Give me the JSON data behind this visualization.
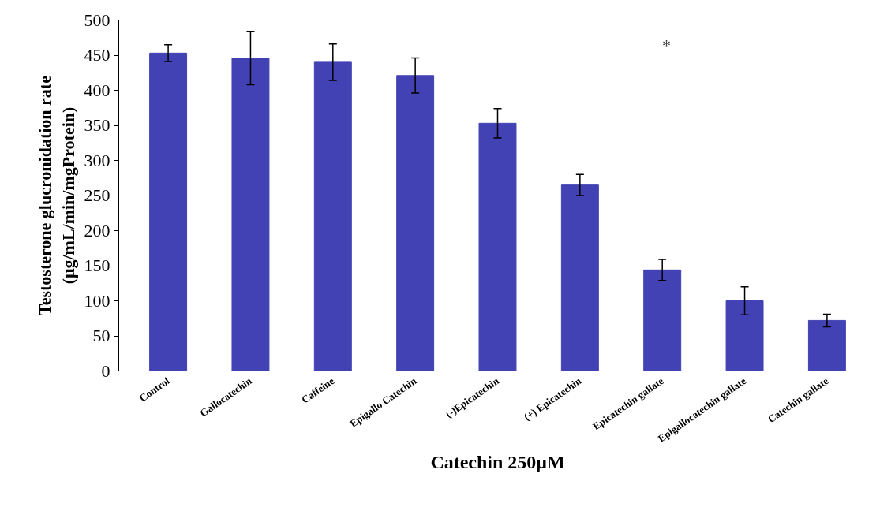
{
  "chart_data": {
    "type": "bar",
    "xlabel": "Catechin 250μM",
    "ylabel": "Testosterone glucronidation rate\n(μg/mL/min/mgProtein)",
    "categories": [
      "Control",
      "Gallocatechin",
      "Caffeine",
      "Epigallo Catechin",
      "(-)Epicatechin",
      "(+) Epicatechin",
      "Epicatechin gallate",
      "Epigallocatechin gallate",
      "Catechin gallate"
    ],
    "values": [
      453,
      446,
      440,
      421,
      353,
      265,
      144,
      100,
      72
    ],
    "errors": [
      12,
      38,
      26,
      25,
      21,
      15,
      15,
      20,
      9
    ],
    "color": "#4242b4",
    "ylim": [
      0,
      500
    ],
    "yticks": [
      0,
      50,
      100,
      150,
      200,
      250,
      300,
      350,
      400,
      450,
      500
    ],
    "grid": false,
    "annotations": [
      "*"
    ]
  }
}
